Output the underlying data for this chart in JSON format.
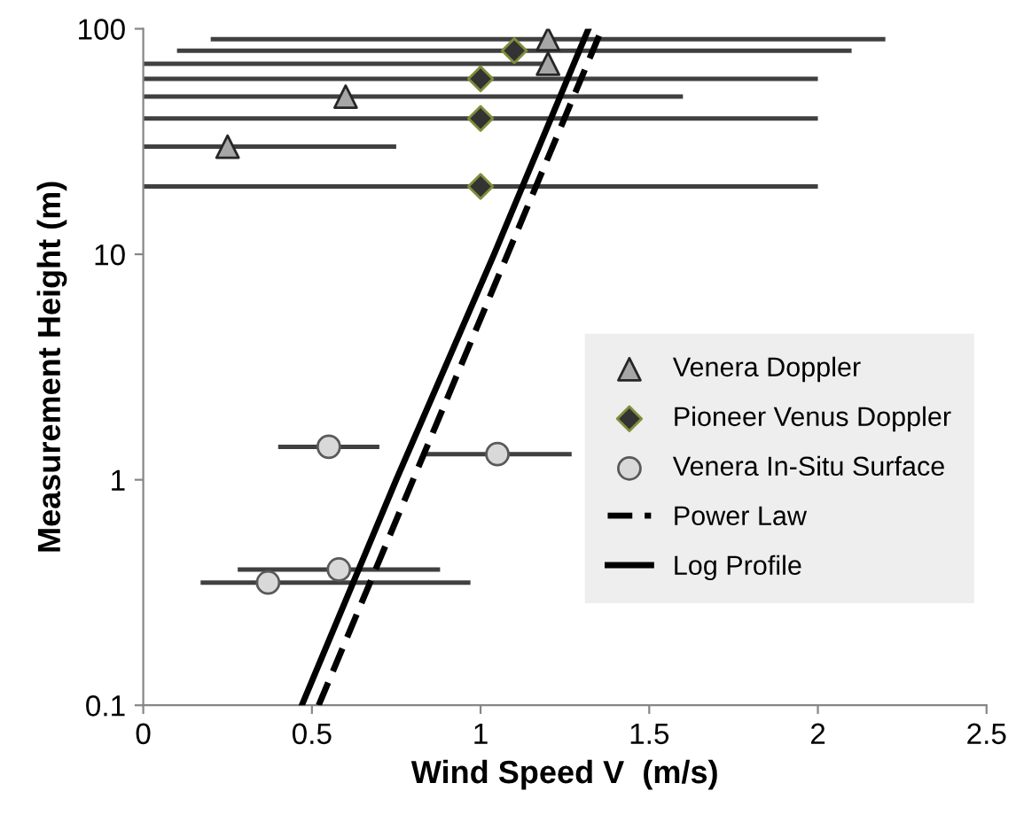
{
  "chart_data": {
    "type": "scatter",
    "xlabel": "Wind Speed V  (m/s)",
    "ylabel": "Measurement Height (m)",
    "log": "y",
    "xlim": [
      0,
      2.5
    ],
    "xticks": [
      0,
      0.5,
      1,
      1.5,
      2,
      2.5
    ],
    "ylim": [
      0.1,
      100
    ],
    "yticks": [
      0.1,
      1,
      10,
      100
    ],
    "grid": false,
    "legend": "right",
    "series": [
      {
        "name": "Venera Doppler",
        "marker": "triangle",
        "color": "#a6a6a6",
        "x": [
          1.2,
          1.2,
          0.6,
          0.25
        ],
        "values": [
          90,
          70,
          50,
          30
        ],
        "xerrors": [
          1.0,
          [
            0,
            1.2
          ],
          1.0,
          0.5
        ]
      },
      {
        "name": "Pioneer Venus Doppler",
        "marker": "diamond",
        "color": "#333333",
        "x": [
          1.1,
          1.0,
          1.0,
          1.0
        ],
        "values": [
          80,
          60,
          40,
          20
        ],
        "xerrors": [
          1.0,
          1.0,
          1.0,
          1.0
        ]
      },
      {
        "name": "Venera In-Situ Surface",
        "marker": "circle",
        "color": "#d9d9d9",
        "x": [
          0.55,
          1.05,
          0.58,
          0.37
        ],
        "values": [
          1.4,
          1.3,
          0.4,
          0.35
        ],
        "xerrors": [
          0.15,
          0.22,
          0.3,
          [
            0.17,
            0.97
          ]
        ]
      },
      {
        "name": "Power Law",
        "type": "line",
        "line_style": "dashed",
        "marker": "none",
        "color": "#000000",
        "x": [
          0.52,
          0.8,
          1.08,
          1.36
        ],
        "values": [
          0.1,
          1,
          10,
          100
        ]
      },
      {
        "name": "Log Profile",
        "type": "line",
        "line_style": "solid",
        "marker": "none",
        "color": "#000000",
        "x": [
          0.47,
          0.75,
          1.04,
          1.32
        ],
        "values": [
          0.1,
          1,
          10,
          100
        ]
      }
    ]
  }
}
